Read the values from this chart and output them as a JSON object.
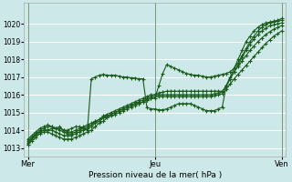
{
  "xlabel": "Pression niveau de la mer( hPa )",
  "bg_color": "#cce8e8",
  "grid_color": "#ffffff",
  "line_color": "#1a5c1a",
  "marker_color": "#1a5c1a",
  "ylim": [
    1012.5,
    1021.2
  ],
  "yticks": [
    1013,
    1014,
    1015,
    1016,
    1017,
    1018,
    1019,
    1020
  ],
  "xtick_labels": [
    "Mer",
    "Jeu",
    "Ven"
  ],
  "xtick_positions": [
    0,
    32,
    64
  ],
  "total_points": 65,
  "series": [
    [
      1013.2,
      1013.5,
      1013.8,
      1013.9,
      1014.0,
      1014.0,
      1014.1,
      1014.1,
      1014.2,
      1014.0,
      1014.0,
      1014.1,
      1014.2,
      1014.2,
      1014.1,
      1014.0,
      1016.9,
      1017.0,
      1017.1,
      1017.15,
      1017.1,
      1017.1,
      1017.1,
      1017.05,
      1017.0,
      1017.0,
      1016.95,
      1016.95,
      1016.9,
      1016.9,
      1015.3,
      1015.2,
      1015.2,
      1015.15,
      1015.15,
      1015.2,
      1015.3,
      1015.4,
      1015.5,
      1015.5,
      1015.5,
      1015.5,
      1015.4,
      1015.3,
      1015.2,
      1015.1,
      1015.1,
      1015.1,
      1015.2,
      1015.3,
      1016.5,
      1017.0,
      1017.5,
      1018.0,
      1018.5,
      1019.0,
      1019.3,
      1019.6,
      1019.8,
      1019.95,
      1020.05,
      1020.1,
      1020.15,
      1020.2,
      1020.3
    ],
    [
      1013.5,
      1013.7,
      1013.9,
      1014.1,
      1014.2,
      1014.3,
      1014.2,
      1014.1,
      1014.1,
      1014.0,
      1013.9,
      1013.9,
      1014.0,
      1014.1,
      1014.2,
      1014.3,
      1014.4,
      1014.5,
      1014.6,
      1014.7,
      1014.8,
      1014.9,
      1015.0,
      1015.1,
      1015.2,
      1015.3,
      1015.4,
      1015.5,
      1015.5,
      1015.6,
      1015.7,
      1015.8,
      1015.8,
      1016.5,
      1017.2,
      1017.7,
      1017.6,
      1017.5,
      1017.4,
      1017.3,
      1017.2,
      1017.15,
      1017.1,
      1017.1,
      1017.05,
      1017.0,
      1017.0,
      1017.05,
      1017.1,
      1017.15,
      1017.2,
      1017.3,
      1017.5,
      1017.8,
      1018.2,
      1018.6,
      1019.0,
      1019.3,
      1019.6,
      1019.8,
      1019.95,
      1020.05,
      1020.1,
      1020.15,
      1020.2
    ],
    [
      1013.4,
      1013.6,
      1013.8,
      1014.0,
      1014.1,
      1014.2,
      1014.2,
      1014.1,
      1014.0,
      1013.9,
      1013.8,
      1013.8,
      1013.9,
      1014.0,
      1014.1,
      1014.2,
      1014.3,
      1014.5,
      1014.6,
      1014.8,
      1014.9,
      1015.0,
      1015.1,
      1015.2,
      1015.3,
      1015.4,
      1015.5,
      1015.6,
      1015.7,
      1015.8,
      1015.9,
      1016.0,
      1016.0,
      1016.1,
      1016.15,
      1016.2,
      1016.2,
      1016.2,
      1016.2,
      1016.2,
      1016.2,
      1016.2,
      1016.2,
      1016.2,
      1016.2,
      1016.2,
      1016.2,
      1016.2,
      1016.2,
      1016.2,
      1016.5,
      1016.9,
      1017.3,
      1017.7,
      1018.1,
      1018.5,
      1018.85,
      1019.15,
      1019.4,
      1019.6,
      1019.75,
      1019.9,
      1019.95,
      1020.0,
      1020.05
    ],
    [
      1013.3,
      1013.5,
      1013.7,
      1013.9,
      1014.0,
      1014.0,
      1014.0,
      1013.9,
      1013.8,
      1013.7,
      1013.7,
      1013.7,
      1013.8,
      1013.9,
      1014.0,
      1014.1,
      1014.2,
      1014.4,
      1014.5,
      1014.7,
      1014.8,
      1014.9,
      1015.0,
      1015.1,
      1015.2,
      1015.3,
      1015.4,
      1015.5,
      1015.6,
      1015.7,
      1015.8,
      1015.9,
      1016.0,
      1016.0,
      1016.0,
      1016.0,
      1016.0,
      1016.0,
      1016.0,
      1016.0,
      1016.0,
      1016.0,
      1016.0,
      1016.0,
      1016.0,
      1016.0,
      1016.0,
      1016.05,
      1016.1,
      1016.15,
      1016.5,
      1016.9,
      1017.3,
      1017.6,
      1017.9,
      1018.2,
      1018.5,
      1018.75,
      1019.0,
      1019.2,
      1019.4,
      1019.55,
      1019.7,
      1019.8,
      1019.9
    ],
    [
      1013.2,
      1013.4,
      1013.6,
      1013.8,
      1013.9,
      1013.9,
      1013.8,
      1013.7,
      1013.6,
      1013.5,
      1013.5,
      1013.5,
      1013.6,
      1013.7,
      1013.8,
      1013.9,
      1014.0,
      1014.2,
      1014.4,
      1014.5,
      1014.7,
      1014.8,
      1014.9,
      1015.0,
      1015.1,
      1015.2,
      1015.3,
      1015.4,
      1015.5,
      1015.6,
      1015.7,
      1015.8,
      1015.9,
      1015.9,
      1015.9,
      1015.9,
      1015.9,
      1015.9,
      1015.9,
      1015.9,
      1015.9,
      1015.9,
      1015.9,
      1015.9,
      1015.9,
      1015.9,
      1015.9,
      1015.95,
      1016.0,
      1016.05,
      1016.3,
      1016.6,
      1016.9,
      1017.15,
      1017.4,
      1017.65,
      1017.9,
      1018.15,
      1018.4,
      1018.65,
      1018.9,
      1019.1,
      1019.3,
      1019.45,
      1019.6
    ]
  ]
}
